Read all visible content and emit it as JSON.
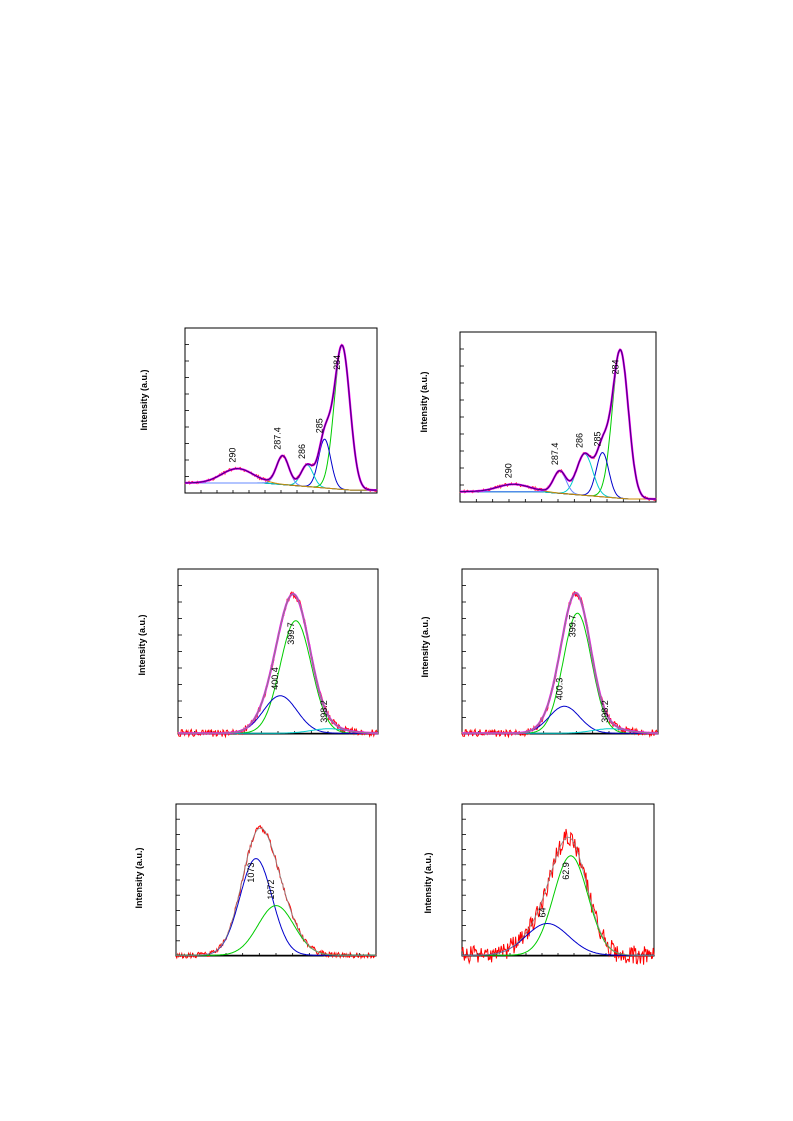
{
  "page": {
    "background": "#ffffff"
  },
  "styles": {
    "total_color": "#4b0082",
    "envelope_color": "#ff00ff",
    "raw_color": "#ff0000",
    "green": "#00cc00",
    "blue": "#0000cc",
    "cyan": "#00cccc",
    "light_blue": "#6688ff",
    "baseline_color": "#999900"
  },
  "chart_data": [
    {
      "id": "c1s-left",
      "type": "line",
      "ylabel": "Intensity (a.u.)",
      "xlim": [
        282,
        293
      ],
      "ylim": [
        0,
        1.15
      ],
      "peaks": [
        {
          "center": 284.0,
          "amp": 1.0,
          "sigma": 0.45,
          "color": "#00cc00",
          "label": "284"
        },
        {
          "center": 285.0,
          "amp": 0.34,
          "sigma": 0.35,
          "color": "#0000cc",
          "label": "285"
        },
        {
          "center": 286.0,
          "amp": 0.15,
          "sigma": 0.35,
          "color": "#00cccc",
          "label": "286"
        },
        {
          "center": 287.4,
          "amp": 0.2,
          "sigma": 0.35,
          "color": "#6688ff",
          "label": "287.4"
        },
        {
          "center": 290.0,
          "amp": 0.1,
          "sigma": 0.9,
          "color": "#cc8800",
          "label": "290"
        }
      ],
      "show_baseline": true,
      "show_envelope": true,
      "noise": 0.01
    },
    {
      "id": "c1s-right",
      "type": "line",
      "ylabel": "Intensity (a.u.)",
      "xlim": [
        282,
        293
      ],
      "ylim": [
        0,
        1.15
      ],
      "peaks": [
        {
          "center": 284.0,
          "amp": 1.0,
          "sigma": 0.45,
          "color": "#00cc00",
          "label": "284"
        },
        {
          "center": 285.0,
          "amp": 0.3,
          "sigma": 0.35,
          "color": "#0000cc",
          "label": "285"
        },
        {
          "center": 286.0,
          "amp": 0.28,
          "sigma": 0.45,
          "color": "#00cccc",
          "label": "286"
        },
        {
          "center": 287.4,
          "amp": 0.15,
          "sigma": 0.35,
          "color": "#6688ff",
          "label": "287.4"
        },
        {
          "center": 290.0,
          "amp": 0.05,
          "sigma": 0.9,
          "color": "#cc8800",
          "label": "290"
        }
      ],
      "show_baseline": true,
      "show_envelope": true,
      "noise": 0.01
    },
    {
      "id": "n1s-left",
      "type": "line",
      "ylabel": "Intensity (a.u.)",
      "xlim": [
        396,
        405
      ],
      "ylim": [
        0,
        1.1
      ],
      "peaks": [
        {
          "center": 399.7,
          "amp": 0.75,
          "sigma": 0.7,
          "color": "#00cc00",
          "label": "399.7"
        },
        {
          "center": 400.4,
          "amp": 0.25,
          "sigma": 0.75,
          "color": "#0000cc",
          "label": "400.4"
        },
        {
          "center": 398.2,
          "amp": 0.03,
          "sigma": 0.8,
          "color": "#00cccc",
          "label": "398.2"
        }
      ],
      "show_baseline": false,
      "show_envelope": true,
      "noise": 0.025
    },
    {
      "id": "n1s-right",
      "type": "line",
      "ylabel": "Intensity (a.u.)",
      "xlim": [
        396,
        405
      ],
      "ylim": [
        0,
        1.1
      ],
      "peaks": [
        {
          "center": 399.7,
          "amp": 0.8,
          "sigma": 0.65,
          "color": "#00cc00",
          "label": "399.7"
        },
        {
          "center": 400.3,
          "amp": 0.18,
          "sigma": 0.7,
          "color": "#0000cc",
          "label": "400.3"
        },
        {
          "center": 398.2,
          "amp": 0.03,
          "sigma": 0.8,
          "color": "#00cccc",
          "label": "398.2"
        }
      ],
      "show_baseline": false,
      "show_envelope": true,
      "noise": 0.025
    },
    {
      "id": "na1s-left",
      "type": "line",
      "ylabel": "Intensity (a.u.)",
      "xlim": [
        1067,
        1077
      ],
      "ylim": [
        0,
        1.1
      ],
      "peaks": [
        {
          "center": 1073,
          "amp": 0.7,
          "sigma": 0.8,
          "color": "#0000cc",
          "label": "1073"
        },
        {
          "center": 1072,
          "amp": 0.36,
          "sigma": 0.9,
          "color": "#00cc00",
          "label": "1072"
        }
      ],
      "show_baseline": false,
      "show_envelope": false,
      "noise": 0.02
    },
    {
      "id": "mg2p-right",
      "type": "line",
      "ylabel": "Intensity (a.u.)",
      "xlim": [
        59,
        68
      ],
      "ylim": [
        0,
        1.1
      ],
      "peaks": [
        {
          "center": 62.9,
          "amp": 0.72,
          "sigma": 0.8,
          "color": "#00cc00",
          "label": "62.9"
        },
        {
          "center": 64.0,
          "amp": 0.23,
          "sigma": 1.0,
          "color": "#0000cc",
          "label": "64"
        }
      ],
      "show_baseline": false,
      "show_envelope": false,
      "noise": 0.07
    }
  ]
}
